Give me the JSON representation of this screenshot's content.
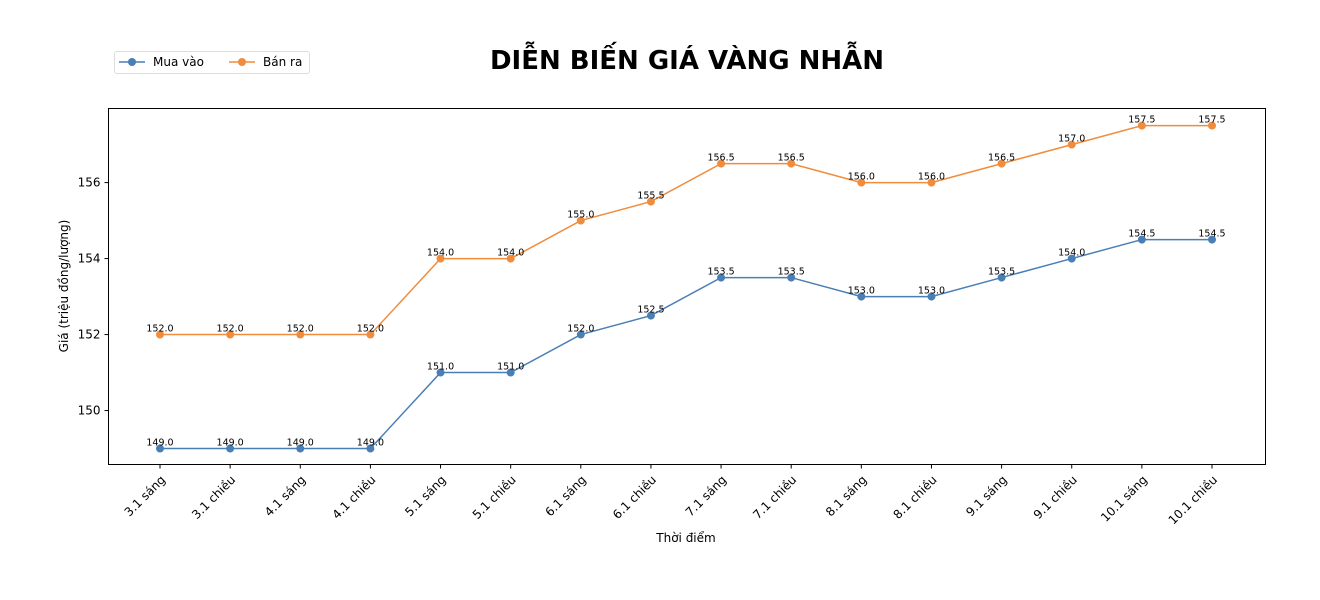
{
  "chart_data": {
    "type": "line",
    "title": "DIỄN BIẾN GIÁ VÀNG NHẪN",
    "xlabel": "Thời điểm",
    "ylabel": "Giá (triệu đồng/lượng)",
    "categories": [
      "3.1 sáng",
      "3.1 chiều",
      "4.1 sáng",
      "4.1 chiều",
      "5.1 sáng",
      "5.1 chiều",
      "6.1 sáng",
      "6.1 chiều",
      "7.1 sáng",
      "7.1 chiều",
      "8.1 sáng",
      "8.1 chiều",
      "9.1 sáng",
      "9.1 chiều",
      "10.1 sáng",
      "10.1 chiều"
    ],
    "yticks": [
      150,
      152,
      154,
      156
    ],
    "ylim": [
      148.58,
      157.95
    ],
    "grid": false,
    "legend_position": "top-left",
    "series": [
      {
        "name": "Mua vào",
        "color": "#4a7fb5",
        "values": [
          149.0,
          149.0,
          149.0,
          149.0,
          151.0,
          151.0,
          152.0,
          152.5,
          153.5,
          153.5,
          153.0,
          153.0,
          153.5,
          154.0,
          154.5,
          154.5
        ]
      },
      {
        "name": "Bán ra",
        "color": "#f08c3c",
        "values": [
          152.0,
          152.0,
          152.0,
          152.0,
          154.0,
          154.0,
          155.0,
          155.5,
          156.5,
          156.5,
          156.0,
          156.0,
          156.5,
          157.0,
          157.5,
          157.5
        ]
      }
    ]
  }
}
